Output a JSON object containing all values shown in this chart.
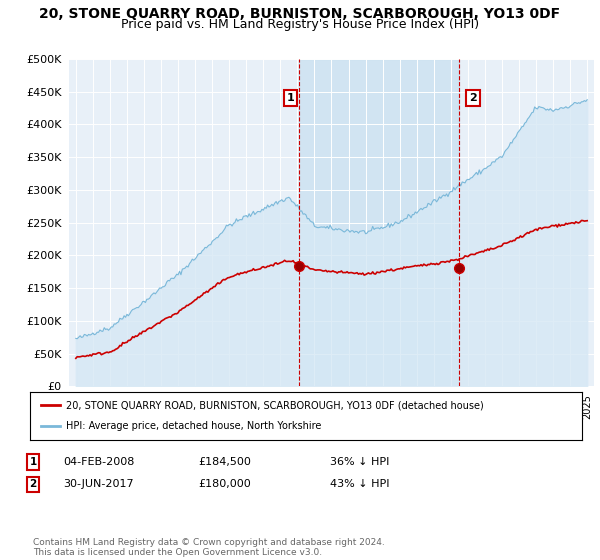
{
  "title": "20, STONE QUARRY ROAD, BURNISTON, SCARBOROUGH, YO13 0DF",
  "subtitle": "Price paid vs. HM Land Registry's House Price Index (HPI)",
  "title_fontsize": 10,
  "subtitle_fontsize": 9,
  "hpi_color": "#7ab8d9",
  "hpi_fill_color": "#d6e8f5",
  "price_color": "#cc0000",
  "background_color": "#e8f0f8",
  "plot_bg_color": "#e8f0f8",
  "highlight_color": "#c8dff0",
  "grid_color": "#b8ccd8",
  "ylim": [
    0,
    500000
  ],
  "yticks": [
    0,
    50000,
    100000,
    150000,
    200000,
    250000,
    300000,
    350000,
    400000,
    450000,
    500000
  ],
  "ytick_labels": [
    "£0",
    "£50K",
    "£100K",
    "£150K",
    "£200K",
    "£250K",
    "£300K",
    "£350K",
    "£400K",
    "£450K",
    "£500K"
  ],
  "transaction1_date": "04-FEB-2008",
  "transaction1_price": 184500,
  "transaction1_hpi_diff": "36% ↓ HPI",
  "transaction2_date": "30-JUN-2017",
  "transaction2_price": 180000,
  "transaction2_hpi_diff": "43% ↓ HPI",
  "legend_line1": "20, STONE QUARRY ROAD, BURNISTON, SCARBOROUGH, YO13 0DF (detached house)",
  "legend_line2": "HPI: Average price, detached house, North Yorkshire",
  "footer": "Contains HM Land Registry data © Crown copyright and database right 2024.\nThis data is licensed under the Open Government Licence v3.0.",
  "marker1_x": 2008.1,
  "marker1_y": 184500,
  "marker2_x": 2017.5,
  "marker2_y": 180000,
  "vline1_x": 2008.1,
  "vline2_x": 2017.5,
  "xmin": 1995,
  "xmax": 2025
}
